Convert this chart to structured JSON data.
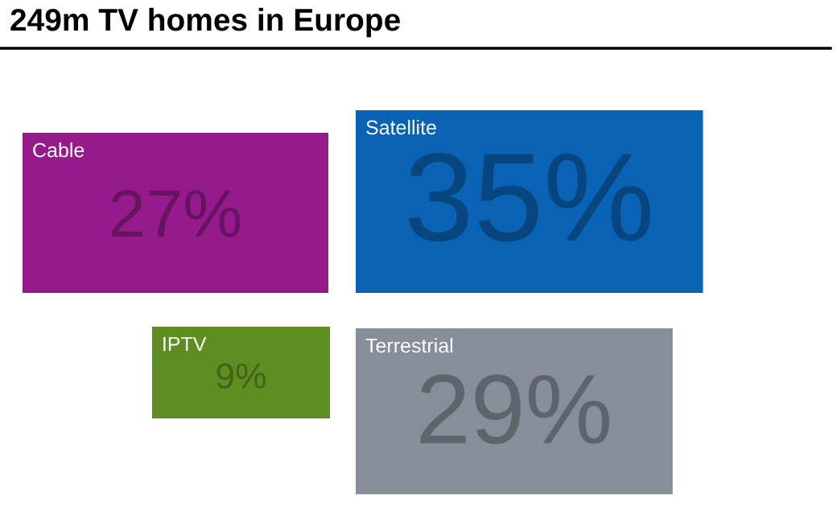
{
  "chart_data": {
    "type": "other",
    "title": "249m TV homes in Europe",
    "categories": [
      "Cable",
      "Satellite",
      "IPTV",
      "Terrestrial"
    ],
    "values": [
      27,
      35,
      9,
      29
    ],
    "value_labels": [
      "27%",
      "35%",
      "9%",
      "29%"
    ],
    "colors": [
      "#951b8c",
      "#0a62b4",
      "#5e8e22",
      "#868f99"
    ]
  }
}
